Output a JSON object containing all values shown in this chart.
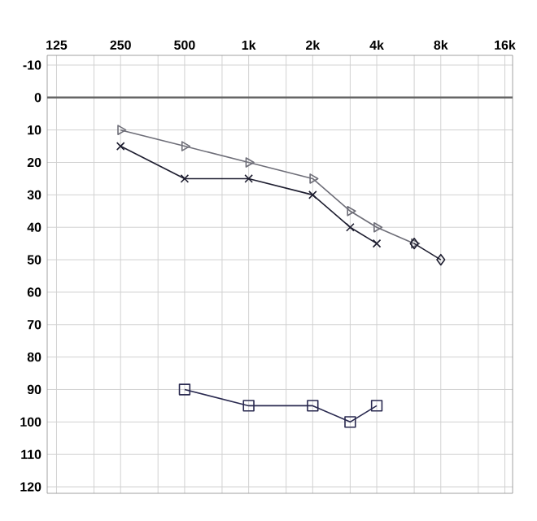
{
  "chart_data": {
    "type": "line",
    "log": "x",
    "xlim": [
      113,
      17400
    ],
    "ylim": [
      122,
      -13
    ],
    "xticks": [
      125,
      {
        "value": 187.5,
        "label": null
      },
      250,
      {
        "value": 375,
        "label": null
      },
      500,
      {
        "value": 750,
        "label": null
      },
      {
        "value": 1000,
        "label": "1k"
      },
      {
        "value": 1500,
        "label": null
      },
      {
        "value": 2000,
        "label": "2k"
      },
      {
        "value": 3000,
        "label": null
      },
      {
        "value": 4000,
        "label": "4k"
      },
      {
        "value": 6000,
        "label": null
      },
      {
        "value": 8000,
        "label": "8k"
      },
      {
        "value": 12000,
        "label": null
      },
      {
        "value": 16000,
        "label": "16k"
      }
    ],
    "yticks": [
      -10,
      0,
      10,
      20,
      30,
      40,
      50,
      60,
      70,
      80,
      90,
      100,
      110,
      120
    ],
    "grid": true,
    "ref_lines": [
      {
        "axis": "y",
        "value": 0,
        "color": "#666666"
      }
    ],
    "series": [
      {
        "x": [
          250,
          500,
          1000,
          2000,
          3000,
          4000
        ],
        "values": [
          15,
          25,
          25,
          30,
          40,
          45
        ],
        "color": "#1e1e30",
        "marker": "cross",
        "line_style": "solid"
      },
      {
        "x": [
          250,
          500,
          1000,
          2000,
          3000,
          4000,
          6000
        ],
        "values": [
          10,
          15,
          20,
          25,
          35,
          40,
          45
        ],
        "color": "#6e6e78",
        "marker": "triangle",
        "line_style": "solid"
      },
      {
        "x": [
          6000,
          8000
        ],
        "values": [
          45,
          50
        ],
        "color": "#1e1e30",
        "marker": "diamond",
        "line_style": "solid"
      },
      {
        "x": [
          500,
          1000,
          2000,
          3000,
          4000
        ],
        "values": [
          90,
          95,
          95,
          100,
          95
        ],
        "color": "#2a2a50",
        "marker": "square",
        "line_style": "solid"
      }
    ]
  }
}
